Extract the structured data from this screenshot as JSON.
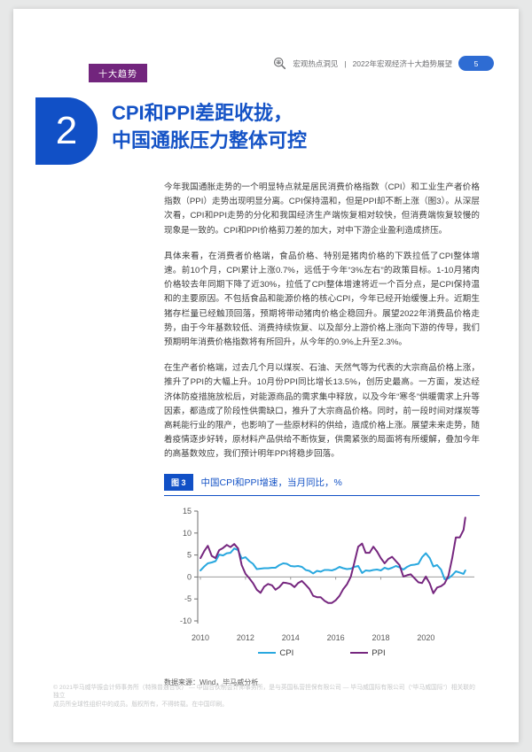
{
  "header": {
    "brand": "宏观热点洞见",
    "separator": "|",
    "title": "2022年宏观经济十大趋势展望",
    "page_number": "5"
  },
  "tag": "十大趋势",
  "section": {
    "number": "2",
    "title_line1": "CPI和PPI差距收拢，",
    "title_line2": "中国通胀压力整体可控"
  },
  "paragraphs": [
    "今年我国通胀走势的一个明显特点就是居民消费价格指数（CPI）和工业生产者价格指数（PPI）走势出现明显分离。CPI保持温和，但是PPI却不断上涨（图3）。从深层次看，CPI和PPI走势的分化和我国经济生产端恢复相对较快，但消费端恢复较慢的现象是一致的。CPI和PPI价格剪刀差的加大，对中下游企业盈利造成挤压。",
    "具体来看，在消费者价格端，食品价格、特别是猪肉价格的下跌拉低了CPI整体增速。前10个月，CPI累计上涨0.7%，远低于今年“3%左右”的政策目标。1-10月猪肉价格较去年同期下降了近30%，拉低了CPI整体增速将近一个百分点，是CPI保持温和的主要原因。不包括食品和能源价格的核心CPI，今年已经开始缓慢上升。近期生猪存栏量已经触顶回落，预期将带动猪肉价格企稳回升。展望2022年消费品价格走势，由于今年基数较低、消费持续恢复、以及部分上游价格上涨向下游的传导，我们预期明年消费价格指数将有所回升，从今年的0.9%上升至2.3%。",
    "在生产者价格端，过去几个月以煤炭、石油、天然气等为代表的大宗商品价格上涨，推升了PPI的大幅上升。10月份PPI同比增长13.5%，创历史最高。一方面，发达经济体防疫措施放松后，对能源商品的需求集中释放，以及今年“寒冬”供暖需求上升等因素，都造成了阶段性供需缺口，推升了大宗商品价格。同时，前一段时间对煤炭等高耗能行业的限产，也影响了一些原材料的供给，造成价格上涨。展望未来走势，随着疫情逐步好转，原材料产品供给不断恢复，供需紧张的局面将有所缓解，叠加今年的高基数效应，我们预计明年PPI将稳步回落。"
  ],
  "figure": {
    "label": "图 3",
    "caption": "中国CPI和PPI增速，当月同比，%"
  },
  "source": "数据来源：Wind，毕马威分析",
  "footer": {
    "line1": "© 2021毕马威华振会计师事务所（特殊普通合伙） — 中国合伙制会计师事务所，是与英国私营担保有限公司 — 毕马威国际有限公司（“毕马威国际”）相关联的独立",
    "line2": "成员所全球性组织中的成员。版权所有，不得转载。在中国印刷。"
  },
  "colors": {
    "accent_blue": "#1150c6",
    "badge_blue": "#2e6cd3",
    "tag_purple": "#72257d",
    "cpi_line": "#29a8df",
    "ppi_line": "#76277f",
    "axis_gray": "#6d6d6d",
    "zero_line_gray": "#9b9b9b"
  },
  "chart_data": {
    "type": "line",
    "title": "中国CPI和PPI增速，当月同比，%",
    "xlabel": "",
    "ylabel": "%",
    "xlim": [
      2009.88,
      2022.15
    ],
    "ylim": [
      -10,
      15
    ],
    "yticks": [
      15,
      10,
      5,
      0,
      -5,
      -10
    ],
    "xticks": [
      2010,
      2012,
      2014,
      2016,
      2018,
      2020
    ],
    "grid": false,
    "legend_position": "bottom",
    "x": [
      2010.0,
      2010.17,
      2010.33,
      2010.5,
      2010.67,
      2010.83,
      2011.0,
      2011.17,
      2011.33,
      2011.5,
      2011.67,
      2011.83,
      2012.0,
      2012.17,
      2012.33,
      2012.5,
      2012.67,
      2012.83,
      2013.0,
      2013.17,
      2013.33,
      2013.5,
      2013.67,
      2013.83,
      2014.0,
      2014.17,
      2014.33,
      2014.5,
      2014.67,
      2014.83,
      2015.0,
      2015.17,
      2015.33,
      2015.5,
      2015.67,
      2015.83,
      2016.0,
      2016.17,
      2016.33,
      2016.5,
      2016.67,
      2016.83,
      2017.0,
      2017.17,
      2017.33,
      2017.5,
      2017.67,
      2017.83,
      2018.0,
      2018.17,
      2018.33,
      2018.5,
      2018.67,
      2018.83,
      2019.0,
      2019.17,
      2019.33,
      2019.5,
      2019.67,
      2019.83,
      2020.0,
      2020.17,
      2020.33,
      2020.5,
      2020.67,
      2020.83,
      2021.0,
      2021.17,
      2021.33,
      2021.5,
      2021.67,
      2021.75
    ],
    "series": [
      {
        "name": "CPI",
        "color": "#29a8df",
        "values": [
          1.5,
          2.4,
          3.1,
          3.3,
          3.6,
          5.1,
          4.9,
          5.4,
          5.5,
          6.5,
          6.1,
          4.2,
          4.5,
          3.6,
          3.0,
          1.8,
          1.9,
          2.0,
          2.0,
          2.1,
          2.1,
          2.7,
          3.1,
          3.0,
          2.5,
          2.4,
          2.5,
          2.3,
          1.6,
          1.4,
          0.8,
          1.4,
          1.2,
          1.6,
          1.6,
          1.5,
          1.8,
          2.3,
          2.0,
          1.8,
          1.9,
          2.3,
          2.5,
          0.9,
          1.5,
          1.4,
          1.6,
          1.7,
          1.5,
          2.1,
          1.8,
          2.1,
          2.5,
          2.2,
          1.7,
          2.3,
          2.7,
          2.8,
          3.0,
          4.5,
          5.4,
          4.3,
          2.4,
          2.7,
          1.7,
          -0.5,
          -0.3,
          0.4,
          1.3,
          1.0,
          0.7,
          1.5
        ]
      },
      {
        "name": "PPI",
        "color": "#76277f",
        "values": [
          4.3,
          5.9,
          7.1,
          4.8,
          4.3,
          6.1,
          6.6,
          7.3,
          6.8,
          7.5,
          6.5,
          2.7,
          0.7,
          -0.3,
          -1.4,
          -2.9,
          -3.6,
          -2.2,
          -1.6,
          -1.9,
          -2.9,
          -2.3,
          -1.3,
          -1.4,
          -1.6,
          -2.3,
          -1.4,
          -0.9,
          -1.8,
          -2.7,
          -4.3,
          -4.6,
          -4.6,
          -5.4,
          -5.9,
          -5.9,
          -5.3,
          -4.3,
          -2.8,
          -1.7,
          0.1,
          3.3,
          6.9,
          7.6,
          5.5,
          5.5,
          6.9,
          5.8,
          4.3,
          3.1,
          4.1,
          4.6,
          3.6,
          2.7,
          0.1,
          0.4,
          0.6,
          -0.3,
          -1.2,
          -1.4,
          0.1,
          -1.5,
          -3.7,
          -2.4,
          -2.1,
          -1.5,
          0.3,
          4.4,
          9.0,
          9.0,
          10.7,
          13.5
        ]
      }
    ]
  }
}
